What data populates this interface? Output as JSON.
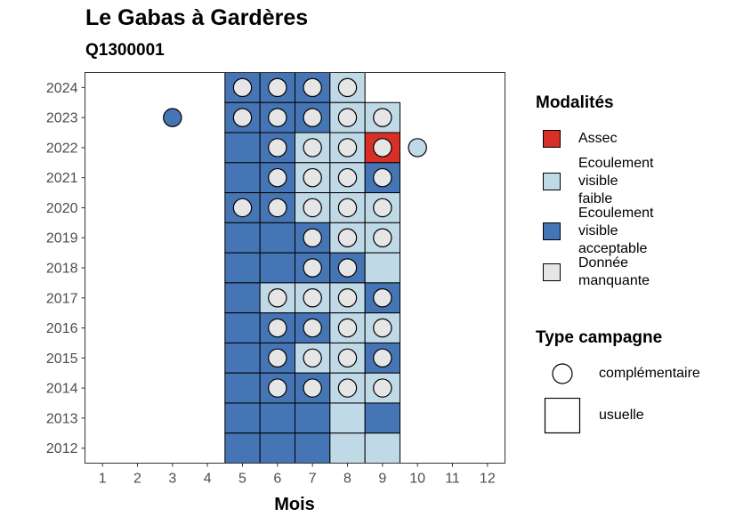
{
  "title": "Le Gabas à Gardères",
  "subtitle": "Q1300001",
  "colors": {
    "Assec": "#d73027",
    "Ecoulement visible faible": "#c0d9e6",
    "Ecoulement visible acceptable": "#4575b4",
    "Donnée manquante": "#e6e6e6"
  },
  "legend_modalites": {
    "title": "Modalités",
    "items": [
      {
        "label": "Assec",
        "color": "#d73027"
      },
      {
        "label": "Ecoulement\nvisible\nfaible",
        "color": "#c0d9e6"
      },
      {
        "label": "Ecoulement\nvisible\nacceptable",
        "color": "#4575b4"
      },
      {
        "label": "Donnée\nmanquante",
        "color": "#e6e6e6"
      }
    ]
  },
  "legend_campagne": {
    "title": "Type campagne",
    "items": [
      {
        "label": "complémentaire",
        "shape": "circle"
      },
      {
        "label": "usuelle",
        "shape": "square"
      }
    ]
  },
  "chart_data": {
    "type": "heatmap",
    "title": "Le Gabas à Gardères",
    "subtitle": "Q1300001",
    "xlabel": "Mois",
    "ylabel": "",
    "x_ticks": [
      1,
      2,
      3,
      4,
      5,
      6,
      7,
      8,
      9,
      10,
      11,
      12
    ],
    "y_ticks": [
      2012,
      2013,
      2014,
      2015,
      2016,
      2017,
      2018,
      2019,
      2020,
      2021,
      2022,
      2023,
      2024
    ],
    "xlim": [
      0.5,
      12.5
    ],
    "ylim": [
      2011.5,
      2024.5
    ],
    "grid": false,
    "legend_position": "right",
    "usuelle": [
      {
        "year": 2024,
        "month": 5,
        "value": "Ecoulement visible acceptable"
      },
      {
        "year": 2024,
        "month": 6,
        "value": "Ecoulement visible acceptable"
      },
      {
        "year": 2024,
        "month": 7,
        "value": "Ecoulement visible acceptable"
      },
      {
        "year": 2024,
        "month": 8,
        "value": "Ecoulement visible faible"
      },
      {
        "year": 2023,
        "month": 5,
        "value": "Ecoulement visible acceptable"
      },
      {
        "year": 2023,
        "month": 6,
        "value": "Ecoulement visible acceptable"
      },
      {
        "year": 2023,
        "month": 7,
        "value": "Ecoulement visible acceptable"
      },
      {
        "year": 2023,
        "month": 8,
        "value": "Ecoulement visible faible"
      },
      {
        "year": 2023,
        "month": 9,
        "value": "Ecoulement visible faible"
      },
      {
        "year": 2022,
        "month": 5,
        "value": "Ecoulement visible acceptable"
      },
      {
        "year": 2022,
        "month": 6,
        "value": "Ecoulement visible acceptable"
      },
      {
        "year": 2022,
        "month": 7,
        "value": "Ecoulement visible faible"
      },
      {
        "year": 2022,
        "month": 8,
        "value": "Ecoulement visible faible"
      },
      {
        "year": 2022,
        "month": 9,
        "value": "Assec"
      },
      {
        "year": 2021,
        "month": 5,
        "value": "Ecoulement visible acceptable"
      },
      {
        "year": 2021,
        "month": 6,
        "value": "Ecoulement visible acceptable"
      },
      {
        "year": 2021,
        "month": 7,
        "value": "Ecoulement visible faible"
      },
      {
        "year": 2021,
        "month": 8,
        "value": "Ecoulement visible faible"
      },
      {
        "year": 2021,
        "month": 9,
        "value": "Ecoulement visible acceptable"
      },
      {
        "year": 2020,
        "month": 5,
        "value": "Ecoulement visible acceptable"
      },
      {
        "year": 2020,
        "month": 6,
        "value": "Ecoulement visible acceptable"
      },
      {
        "year": 2020,
        "month": 7,
        "value": "Ecoulement visible faible"
      },
      {
        "year": 2020,
        "month": 8,
        "value": "Ecoulement visible faible"
      },
      {
        "year": 2020,
        "month": 9,
        "value": "Ecoulement visible faible"
      },
      {
        "year": 2019,
        "month": 5,
        "value": "Ecoulement visible acceptable"
      },
      {
        "year": 2019,
        "month": 6,
        "value": "Ecoulement visible acceptable"
      },
      {
        "year": 2019,
        "month": 7,
        "value": "Ecoulement visible acceptable"
      },
      {
        "year": 2019,
        "month": 8,
        "value": "Ecoulement visible faible"
      },
      {
        "year": 2019,
        "month": 9,
        "value": "Ecoulement visible faible"
      },
      {
        "year": 2018,
        "month": 5,
        "value": "Ecoulement visible acceptable"
      },
      {
        "year": 2018,
        "month": 6,
        "value": "Ecoulement visible acceptable"
      },
      {
        "year": 2018,
        "month": 7,
        "value": "Ecoulement visible acceptable"
      },
      {
        "year": 2018,
        "month": 8,
        "value": "Ecoulement visible acceptable"
      },
      {
        "year": 2018,
        "month": 9,
        "value": "Ecoulement visible faible"
      },
      {
        "year": 2017,
        "month": 5,
        "value": "Ecoulement visible acceptable"
      },
      {
        "year": 2017,
        "month": 6,
        "value": "Ecoulement visible faible"
      },
      {
        "year": 2017,
        "month": 7,
        "value": "Ecoulement visible faible"
      },
      {
        "year": 2017,
        "month": 8,
        "value": "Ecoulement visible faible"
      },
      {
        "year": 2017,
        "month": 9,
        "value": "Ecoulement visible acceptable"
      },
      {
        "year": 2016,
        "month": 5,
        "value": "Ecoulement visible acceptable"
      },
      {
        "year": 2016,
        "month": 6,
        "value": "Ecoulement visible acceptable"
      },
      {
        "year": 2016,
        "month": 7,
        "value": "Ecoulement visible acceptable"
      },
      {
        "year": 2016,
        "month": 8,
        "value": "Ecoulement visible faible"
      },
      {
        "year": 2016,
        "month": 9,
        "value": "Ecoulement visible faible"
      },
      {
        "year": 2015,
        "month": 5,
        "value": "Ecoulement visible acceptable"
      },
      {
        "year": 2015,
        "month": 6,
        "value": "Ecoulement visible acceptable"
      },
      {
        "year": 2015,
        "month": 7,
        "value": "Ecoulement visible faible"
      },
      {
        "year": 2015,
        "month": 8,
        "value": "Ecoulement visible faible"
      },
      {
        "year": 2015,
        "month": 9,
        "value": "Ecoulement visible acceptable"
      },
      {
        "year": 2014,
        "month": 5,
        "value": "Ecoulement visible acceptable"
      },
      {
        "year": 2014,
        "month": 6,
        "value": "Ecoulement visible acceptable"
      },
      {
        "year": 2014,
        "month": 7,
        "value": "Ecoulement visible acceptable"
      },
      {
        "year": 2014,
        "month": 8,
        "value": "Ecoulement visible faible"
      },
      {
        "year": 2014,
        "month": 9,
        "value": "Ecoulement visible faible"
      },
      {
        "year": 2013,
        "month": 5,
        "value": "Ecoulement visible acceptable"
      },
      {
        "year": 2013,
        "month": 6,
        "value": "Ecoulement visible acceptable"
      },
      {
        "year": 2013,
        "month": 7,
        "value": "Ecoulement visible acceptable"
      },
      {
        "year": 2013,
        "month": 8,
        "value": "Ecoulement visible faible"
      },
      {
        "year": 2013,
        "month": 9,
        "value": "Ecoulement visible acceptable"
      },
      {
        "year": 2012,
        "month": 5,
        "value": "Ecoulement visible acceptable"
      },
      {
        "year": 2012,
        "month": 6,
        "value": "Ecoulement visible acceptable"
      },
      {
        "year": 2012,
        "month": 7,
        "value": "Ecoulement visible acceptable"
      },
      {
        "year": 2012,
        "month": 8,
        "value": "Ecoulement visible faible"
      },
      {
        "year": 2012,
        "month": 9,
        "value": "Ecoulement visible faible"
      }
    ],
    "complementaire": [
      {
        "year": 2024,
        "month": 5,
        "value": "Donnée manquante"
      },
      {
        "year": 2024,
        "month": 6,
        "value": "Donnée manquante"
      },
      {
        "year": 2024,
        "month": 7,
        "value": "Donnée manquante"
      },
      {
        "year": 2024,
        "month": 8,
        "value": "Donnée manquante"
      },
      {
        "year": 2023,
        "month": 3,
        "value": "Ecoulement visible acceptable"
      },
      {
        "year": 2023,
        "month": 5,
        "value": "Donnée manquante"
      },
      {
        "year": 2023,
        "month": 6,
        "value": "Donnée manquante"
      },
      {
        "year": 2023,
        "month": 7,
        "value": "Donnée manquante"
      },
      {
        "year": 2023,
        "month": 8,
        "value": "Donnée manquante"
      },
      {
        "year": 2023,
        "month": 9,
        "value": "Donnée manquante"
      },
      {
        "year": 2022,
        "month": 6,
        "value": "Donnée manquante"
      },
      {
        "year": 2022,
        "month": 7,
        "value": "Donnée manquante"
      },
      {
        "year": 2022,
        "month": 8,
        "value": "Donnée manquante"
      },
      {
        "year": 2022,
        "month": 9,
        "value": "Donnée manquante"
      },
      {
        "year": 2022,
        "month": 10,
        "value": "Ecoulement visible faible"
      },
      {
        "year": 2021,
        "month": 6,
        "value": "Donnée manquante"
      },
      {
        "year": 2021,
        "month": 7,
        "value": "Donnée manquante"
      },
      {
        "year": 2021,
        "month": 8,
        "value": "Donnée manquante"
      },
      {
        "year": 2021,
        "month": 9,
        "value": "Donnée manquante"
      },
      {
        "year": 2020,
        "month": 5,
        "value": "Donnée manquante"
      },
      {
        "year": 2020,
        "month": 6,
        "value": "Donnée manquante"
      },
      {
        "year": 2020,
        "month": 7,
        "value": "Donnée manquante"
      },
      {
        "year": 2020,
        "month": 8,
        "value": "Donnée manquante"
      },
      {
        "year": 2020,
        "month": 9,
        "value": "Donnée manquante"
      },
      {
        "year": 2019,
        "month": 7,
        "value": "Donnée manquante"
      },
      {
        "year": 2019,
        "month": 8,
        "value": "Donnée manquante"
      },
      {
        "year": 2019,
        "month": 9,
        "value": "Donnée manquante"
      },
      {
        "year": 2018,
        "month": 7,
        "value": "Donnée manquante"
      },
      {
        "year": 2018,
        "month": 8,
        "value": "Donnée manquante"
      },
      {
        "year": 2017,
        "month": 6,
        "value": "Donnée manquante"
      },
      {
        "year": 2017,
        "month": 7,
        "value": "Donnée manquante"
      },
      {
        "year": 2017,
        "month": 8,
        "value": "Donnée manquante"
      },
      {
        "year": 2017,
        "month": 9,
        "value": "Donnée manquante"
      },
      {
        "year": 2016,
        "month": 6,
        "value": "Donnée manquante"
      },
      {
        "year": 2016,
        "month": 7,
        "value": "Donnée manquante"
      },
      {
        "year": 2016,
        "month": 8,
        "value": "Donnée manquante"
      },
      {
        "year": 2016,
        "month": 9,
        "value": "Donnée manquante"
      },
      {
        "year": 2015,
        "month": 6,
        "value": "Donnée manquante"
      },
      {
        "year": 2015,
        "month": 7,
        "value": "Donnée manquante"
      },
      {
        "year": 2015,
        "month": 8,
        "value": "Donnée manquante"
      },
      {
        "year": 2015,
        "month": 9,
        "value": "Donnée manquante"
      },
      {
        "year": 2014,
        "month": 6,
        "value": "Donnée manquante"
      },
      {
        "year": 2014,
        "month": 7,
        "value": "Donnée manquante"
      },
      {
        "year": 2014,
        "month": 8,
        "value": "Donnée manquante"
      },
      {
        "year": 2014,
        "month": 9,
        "value": "Donnée manquante"
      }
    ]
  }
}
